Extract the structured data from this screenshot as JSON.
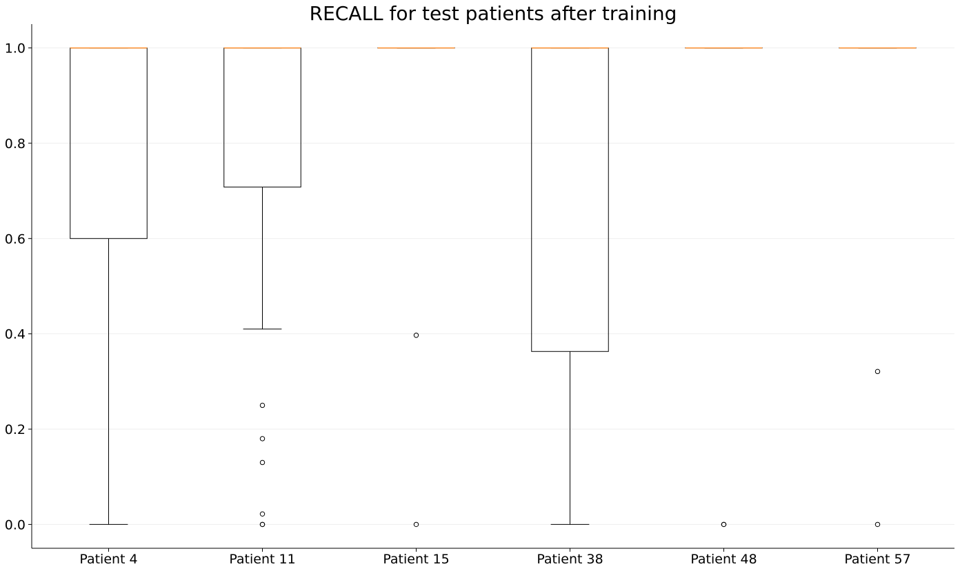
{
  "chart_data": {
    "type": "box",
    "title": "RECALL for test patients after training",
    "xlabel": "",
    "ylabel": "",
    "ylim": [
      -0.05,
      1.05
    ],
    "yticks": [
      "0.0",
      "0.2",
      "0.4",
      "0.6",
      "0.8",
      "1.0"
    ],
    "grid": "horizontal",
    "colors": {
      "box": "#000000",
      "median": "#ff7f0e",
      "grid": "#eeeeee"
    },
    "categories": [
      "Patient 4",
      "Patient 11",
      "Patient 15",
      "Patient 38",
      "Patient 48",
      "Patient 57"
    ],
    "boxes": [
      {
        "category": "Patient 4",
        "whisker_low": 0.0,
        "q1": 0.6,
        "median": 1.0,
        "q3": 1.0,
        "whisker_high": 1.0,
        "outliers": []
      },
      {
        "category": "Patient 11",
        "whisker_low": 0.41,
        "q1": 0.708,
        "median": 1.0,
        "q3": 1.0,
        "whisker_high": 1.0,
        "outliers": [
          0.25,
          0.18,
          0.13,
          0.022,
          0.0,
          0.0
        ]
      },
      {
        "category": "Patient 15",
        "whisker_low": 1.0,
        "q1": 1.0,
        "median": 1.0,
        "q3": 1.0,
        "whisker_high": 1.0,
        "outliers": [
          0.397,
          0.0
        ]
      },
      {
        "category": "Patient 38",
        "whisker_low": 0.0,
        "q1": 0.363,
        "median": 1.0,
        "q3": 1.0,
        "whisker_high": 1.0,
        "outliers": []
      },
      {
        "category": "Patient 48",
        "whisker_low": 1.0,
        "q1": 1.0,
        "median": 1.0,
        "q3": 1.0,
        "whisker_high": 1.0,
        "outliers": [
          0.0,
          0.0
        ]
      },
      {
        "category": "Patient 57",
        "whisker_low": 1.0,
        "q1": 1.0,
        "median": 1.0,
        "q3": 1.0,
        "whisker_high": 1.0,
        "outliers": [
          0.321,
          0.0
        ]
      }
    ]
  }
}
